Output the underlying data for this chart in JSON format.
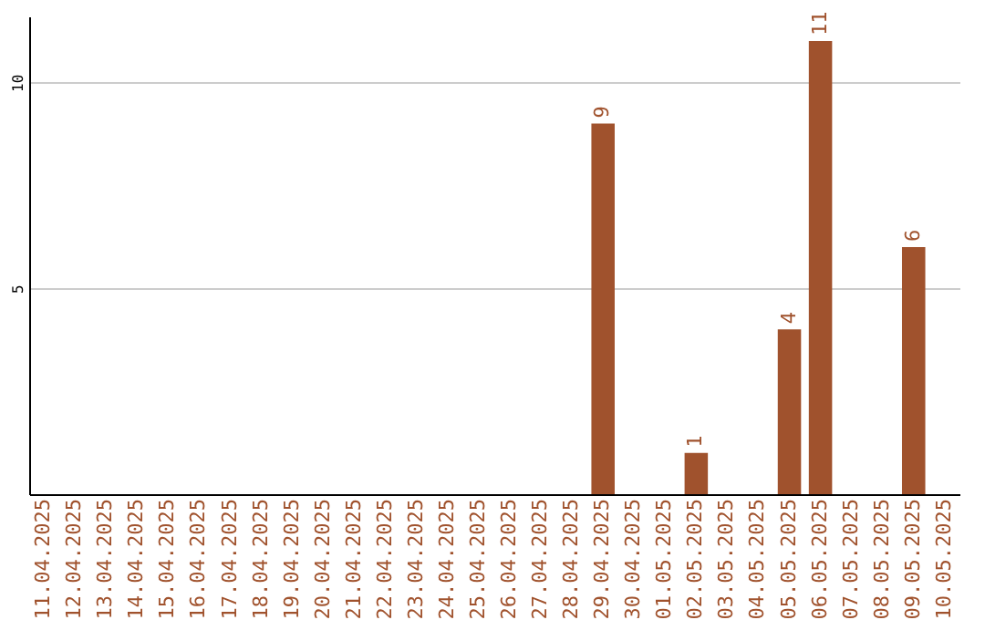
{
  "chart_data": {
    "type": "bar",
    "categories": [
      "11.04.2025",
      "12.04.2025",
      "13.04.2025",
      "14.04.2025",
      "15.04.2025",
      "16.04.2025",
      "17.04.2025",
      "18.04.2025",
      "19.04.2025",
      "20.04.2025",
      "21.04.2025",
      "22.04.2025",
      "23.04.2025",
      "24.04.2025",
      "25.04.2025",
      "26.04.2025",
      "27.04.2025",
      "28.04.2025",
      "29.04.2025",
      "30.04.2025",
      "01.05.2025",
      "02.05.2025",
      "03.05.2025",
      "04.05.2025",
      "05.05.2025",
      "06.05.2025",
      "07.05.2025",
      "08.05.2025",
      "09.05.2025",
      "10.05.2025"
    ],
    "values": [
      0,
      0,
      0,
      0,
      0,
      0,
      0,
      0,
      0,
      0,
      0,
      0,
      0,
      0,
      0,
      0,
      0,
      0,
      9,
      0,
      0,
      1,
      0,
      0,
      4,
      11,
      0,
      0,
      6,
      0
    ],
    "value_labels": [
      null,
      null,
      null,
      null,
      null,
      null,
      null,
      null,
      null,
      null,
      null,
      null,
      null,
      null,
      null,
      null,
      null,
      null,
      "9",
      null,
      null,
      "1",
      null,
      null,
      "4",
      "11",
      null,
      null,
      "6",
      null
    ],
    "color": "#a0522d",
    "ylim": [
      0,
      11.6
    ],
    "yticks": [
      5,
      10
    ],
    "grid": "y"
  }
}
